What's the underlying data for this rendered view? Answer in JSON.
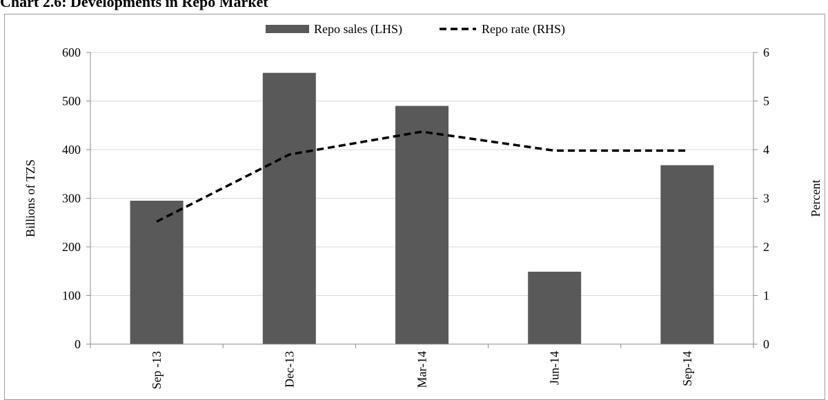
{
  "title": "Chart 2.6: Developments in Repo Market",
  "chart_data": {
    "type": "bar",
    "categories": [
      "Sep -13",
      "Dec-13",
      "Mar-14",
      "Jun-14",
      "Sep-14"
    ],
    "series": [
      {
        "name": "Repo sales (LHS)",
        "type": "bar",
        "axis": "left",
        "values": [
          295,
          558,
          490,
          149,
          368
        ],
        "color": "#595959"
      },
      {
        "name": "Repo rate (RHS)",
        "type": "line",
        "style": "dashed",
        "axis": "right",
        "values": [
          2.52,
          3.9,
          4.37,
          3.98,
          3.98
        ],
        "color": "#000000"
      }
    ],
    "ylabel": "Billions  of TZS",
    "y2label": "Percent",
    "ylim": [
      0,
      600
    ],
    "y2lim": [
      0,
      6
    ],
    "yticks": [
      "0",
      "100",
      "200",
      "300",
      "400",
      "500",
      "600"
    ],
    "y2ticks": [
      "0",
      "1",
      "2",
      "3",
      "4",
      "5",
      "6"
    ],
    "grid": true,
    "legend": "top-center"
  }
}
